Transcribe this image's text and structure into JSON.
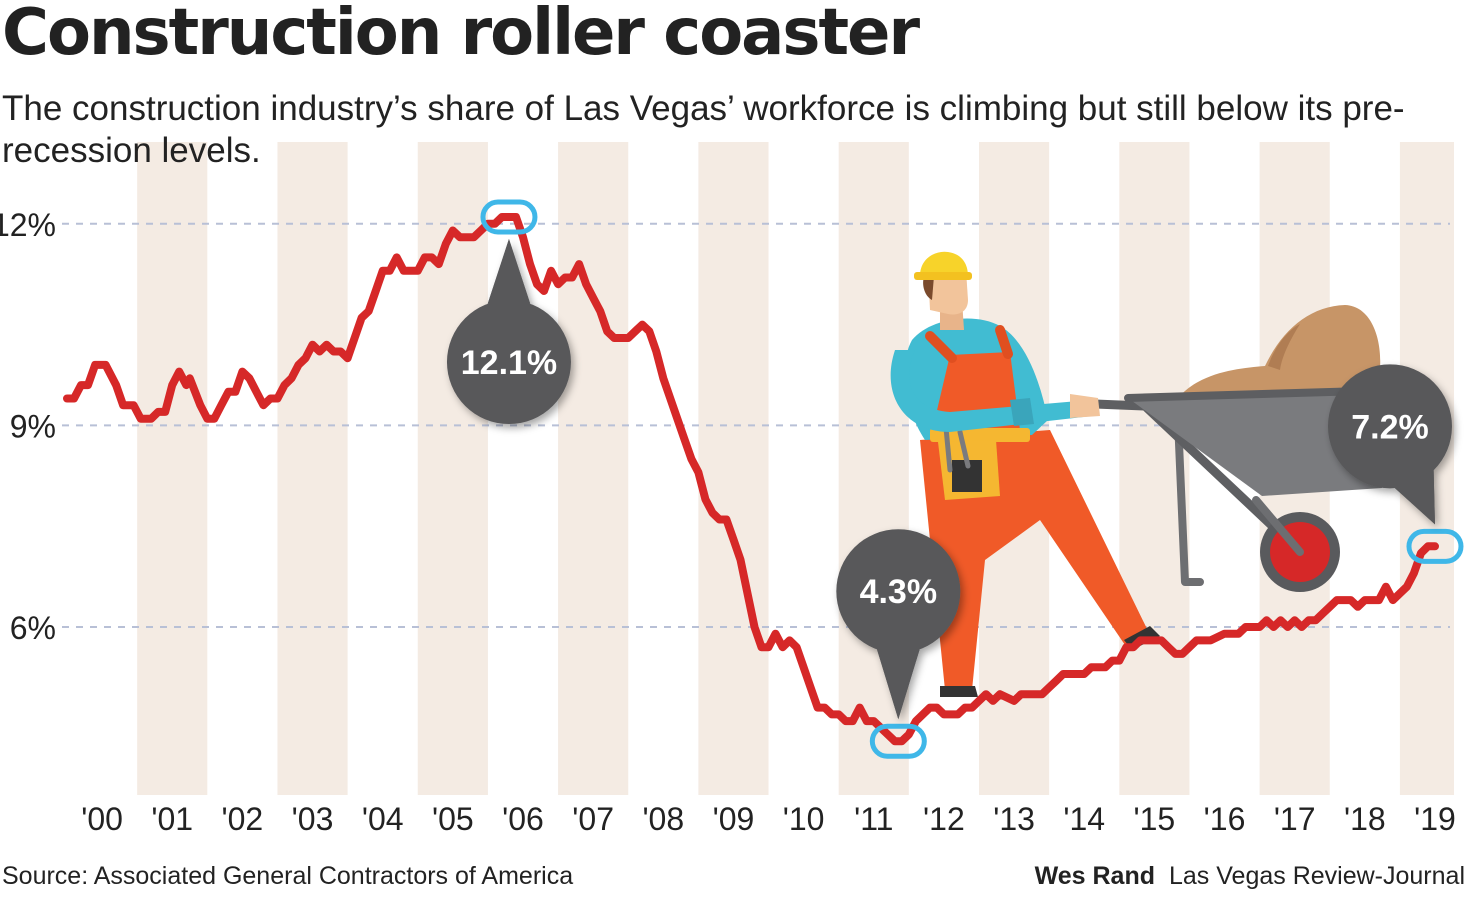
{
  "chart_data": {
    "type": "line",
    "title": "Construction roller coaster",
    "subtitle": "The construction industry’s share of Las Vegas’ workforce is climbing but still below its pre-recession levels.",
    "y_tick_labels": [
      "12%",
      "9%",
      "6%"
    ],
    "y_ticks": [
      12,
      9,
      6
    ],
    "ylim": [
      3.5,
      12.8
    ],
    "x_tick_labels": [
      "'00",
      "'01",
      "'02",
      "'03",
      "'04",
      "'05",
      "'06",
      "'07",
      "'08",
      "'09",
      "'10",
      "'11",
      "'12",
      "'13",
      "'14",
      "'15",
      "'16",
      "'17",
      "'18",
      "'19"
    ],
    "xlim": [
      2000.0,
      2019.6
    ],
    "grid": true,
    "series": [
      {
        "color": "#d62828",
        "points": [
          [
            2000.0,
            9.4
          ],
          [
            2000.1,
            9.4
          ],
          [
            2000.2,
            9.6
          ],
          [
            2000.3,
            9.6
          ],
          [
            2000.4,
            9.9
          ],
          [
            2000.55,
            9.9
          ],
          [
            2000.7,
            9.6
          ],
          [
            2000.8,
            9.3
          ],
          [
            2000.95,
            9.3
          ],
          [
            2001.05,
            9.1
          ],
          [
            2001.2,
            9.1
          ],
          [
            2001.3,
            9.2
          ],
          [
            2001.4,
            9.2
          ],
          [
            2001.5,
            9.6
          ],
          [
            2001.6,
            9.8
          ],
          [
            2001.7,
            9.6
          ],
          [
            2001.75,
            9.7
          ],
          [
            2001.9,
            9.3
          ],
          [
            2002.0,
            9.1
          ],
          [
            2002.1,
            9.1
          ],
          [
            2002.2,
            9.3
          ],
          [
            2002.3,
            9.5
          ],
          [
            2002.4,
            9.5
          ],
          [
            2002.5,
            9.8
          ],
          [
            2002.6,
            9.7
          ],
          [
            2002.7,
            9.5
          ],
          [
            2002.8,
            9.3
          ],
          [
            2002.9,
            9.4
          ],
          [
            2003.0,
            9.4
          ],
          [
            2003.1,
            9.6
          ],
          [
            2003.2,
            9.7
          ],
          [
            2003.3,
            9.9
          ],
          [
            2003.4,
            10.0
          ],
          [
            2003.5,
            10.2
          ],
          [
            2003.6,
            10.1
          ],
          [
            2003.7,
            10.2
          ],
          [
            2003.8,
            10.1
          ],
          [
            2003.9,
            10.1
          ],
          [
            2004.0,
            10.0
          ],
          [
            2004.1,
            10.3
          ],
          [
            2004.2,
            10.6
          ],
          [
            2004.3,
            10.7
          ],
          [
            2004.4,
            11.0
          ],
          [
            2004.5,
            11.3
          ],
          [
            2004.6,
            11.3
          ],
          [
            2004.7,
            11.5
          ],
          [
            2004.8,
            11.3
          ],
          [
            2004.9,
            11.3
          ],
          [
            2005.0,
            11.3
          ],
          [
            2005.1,
            11.5
          ],
          [
            2005.2,
            11.5
          ],
          [
            2005.3,
            11.4
          ],
          [
            2005.4,
            11.7
          ],
          [
            2005.5,
            11.9
          ],
          [
            2005.6,
            11.8
          ],
          [
            2005.7,
            11.8
          ],
          [
            2005.8,
            11.8
          ],
          [
            2005.9,
            11.9
          ],
          [
            2006.0,
            12.0
          ],
          [
            2006.1,
            12.0
          ],
          [
            2006.2,
            12.1
          ],
          [
            2006.3,
            12.1
          ],
          [
            2006.4,
            12.1
          ],
          [
            2006.5,
            11.8
          ],
          [
            2006.6,
            11.4
          ],
          [
            2006.7,
            11.1
          ],
          [
            2006.8,
            11.0
          ],
          [
            2006.9,
            11.3
          ],
          [
            2007.0,
            11.1
          ],
          [
            2007.1,
            11.2
          ],
          [
            2007.2,
            11.2
          ],
          [
            2007.3,
            11.4
          ],
          [
            2007.4,
            11.1
          ],
          [
            2007.5,
            10.9
          ],
          [
            2007.6,
            10.7
          ],
          [
            2007.7,
            10.4
          ],
          [
            2007.8,
            10.3
          ],
          [
            2007.9,
            10.3
          ],
          [
            2008.0,
            10.3
          ],
          [
            2008.1,
            10.4
          ],
          [
            2008.2,
            10.5
          ],
          [
            2008.3,
            10.4
          ],
          [
            2008.4,
            10.1
          ],
          [
            2008.5,
            9.7
          ],
          [
            2008.6,
            9.4
          ],
          [
            2008.7,
            9.1
          ],
          [
            2008.8,
            8.8
          ],
          [
            2008.9,
            8.5
          ],
          [
            2009.0,
            8.3
          ],
          [
            2009.1,
            7.9
          ],
          [
            2009.2,
            7.7
          ],
          [
            2009.3,
            7.6
          ],
          [
            2009.4,
            7.6
          ],
          [
            2009.5,
            7.3
          ],
          [
            2009.6,
            7.0
          ],
          [
            2009.7,
            6.5
          ],
          [
            2009.8,
            6.0
          ],
          [
            2009.9,
            5.7
          ],
          [
            2010.0,
            5.7
          ],
          [
            2010.1,
            5.9
          ],
          [
            2010.2,
            5.7
          ],
          [
            2010.3,
            5.8
          ],
          [
            2010.4,
            5.7
          ],
          [
            2010.5,
            5.4
          ],
          [
            2010.6,
            5.1
          ],
          [
            2010.7,
            4.8
          ],
          [
            2010.8,
            4.8
          ],
          [
            2010.9,
            4.7
          ],
          [
            2011.0,
            4.7
          ],
          [
            2011.1,
            4.6
          ],
          [
            2011.2,
            4.6
          ],
          [
            2011.3,
            4.8
          ],
          [
            2011.4,
            4.6
          ],
          [
            2011.5,
            4.6
          ],
          [
            2011.6,
            4.5
          ],
          [
            2011.7,
            4.4
          ],
          [
            2011.8,
            4.3
          ],
          [
            2011.9,
            4.3
          ],
          [
            2012.0,
            4.4
          ],
          [
            2012.1,
            4.6
          ],
          [
            2012.2,
            4.7
          ],
          [
            2012.3,
            4.8
          ],
          [
            2012.4,
            4.8
          ],
          [
            2012.5,
            4.7
          ],
          [
            2012.6,
            4.7
          ],
          [
            2012.7,
            4.7
          ],
          [
            2012.8,
            4.8
          ],
          [
            2012.9,
            4.8
          ],
          [
            2013.0,
            4.9
          ],
          [
            2013.1,
            5.0
          ],
          [
            2013.2,
            4.9
          ],
          [
            2013.3,
            5.0
          ],
          [
            2013.5,
            4.9
          ],
          [
            2013.6,
            5.0
          ],
          [
            2013.8,
            5.0
          ],
          [
            2013.9,
            5.0
          ],
          [
            2014.0,
            5.1
          ],
          [
            2014.1,
            5.2
          ],
          [
            2014.2,
            5.3
          ],
          [
            2014.5,
            5.3
          ],
          [
            2014.6,
            5.4
          ],
          [
            2014.8,
            5.4
          ],
          [
            2014.9,
            5.5
          ],
          [
            2015.0,
            5.5
          ],
          [
            2015.1,
            5.7
          ],
          [
            2015.2,
            5.7
          ],
          [
            2015.3,
            5.8
          ],
          [
            2015.4,
            5.8
          ],
          [
            2015.6,
            5.8
          ],
          [
            2015.7,
            5.7
          ],
          [
            2015.8,
            5.6
          ],
          [
            2015.9,
            5.6
          ],
          [
            2016.0,
            5.7
          ],
          [
            2016.1,
            5.8
          ],
          [
            2016.3,
            5.8
          ],
          [
            2016.5,
            5.9
          ],
          [
            2016.7,
            5.9
          ],
          [
            2016.8,
            6.0
          ],
          [
            2017.0,
            6.0
          ],
          [
            2017.1,
            6.1
          ],
          [
            2017.2,
            6.0
          ],
          [
            2017.3,
            6.1
          ],
          [
            2017.4,
            6.0
          ],
          [
            2017.5,
            6.1
          ],
          [
            2017.6,
            6.0
          ],
          [
            2017.7,
            6.1
          ],
          [
            2017.8,
            6.1
          ],
          [
            2017.9,
            6.2
          ],
          [
            2018.0,
            6.3
          ],
          [
            2018.1,
            6.4
          ],
          [
            2018.2,
            6.4
          ],
          [
            2018.3,
            6.4
          ],
          [
            2018.4,
            6.3
          ],
          [
            2018.5,
            6.4
          ],
          [
            2018.6,
            6.4
          ],
          [
            2018.7,
            6.4
          ],
          [
            2018.8,
            6.6
          ],
          [
            2018.9,
            6.4
          ],
          [
            2019.0,
            6.5
          ],
          [
            2019.1,
            6.6
          ],
          [
            2019.2,
            6.8
          ],
          [
            2019.3,
            7.1
          ],
          [
            2019.4,
            7.2
          ],
          [
            2019.5,
            7.2
          ]
        ]
      }
    ],
    "annotations": [
      {
        "label": "12.1%",
        "x": 2006.3,
        "y": 12.1
      },
      {
        "label": "4.3%",
        "x": 2011.85,
        "y": 4.3
      },
      {
        "label": "7.2%",
        "x": 2019.5,
        "y": 7.2
      }
    ]
  },
  "footer": {
    "source": "Source: Associated General Contractors of America",
    "author": "Wes Rand",
    "publication": "Las Vegas Review-Journal"
  },
  "colors": {
    "line": "#d62828",
    "band": "#f4ebe3",
    "bubble": "#58585a",
    "highlight": "#3fb7e8"
  }
}
